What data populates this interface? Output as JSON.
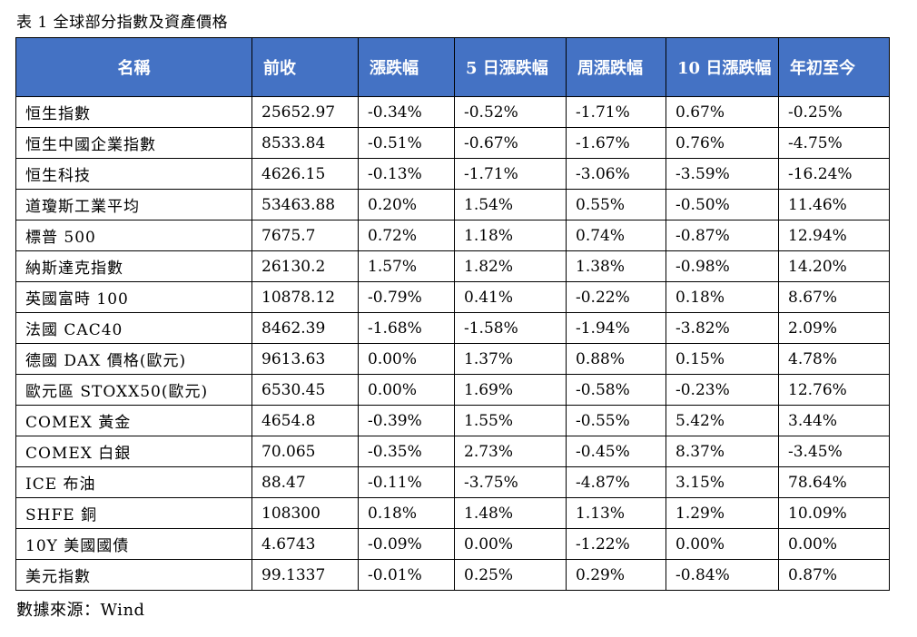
{
  "caption": "表 1 全球部分指數及資產價格",
  "table": {
    "headers": [
      "名稱",
      "前收",
      "漲跌幅",
      "5 日漲跌幅",
      "周漲跌幅",
      "10 日漲跌幅",
      "年初至今"
    ],
    "rows": [
      [
        "恒生指數",
        "25652.97",
        "-0.34%",
        "-0.52%",
        "-1.71%",
        "0.67%",
        "-0.25%"
      ],
      [
        "恒生中國企業指數",
        "8533.84",
        "-0.51%",
        "-0.67%",
        "-1.67%",
        "0.76%",
        "-4.75%"
      ],
      [
        "恒生科技",
        "4626.15",
        "-0.13%",
        "-1.71%",
        "-3.06%",
        "-3.59%",
        "-16.24%"
      ],
      [
        "道瓊斯工業平均",
        "53463.88",
        "0.20%",
        "1.54%",
        "0.55%",
        "-0.50%",
        "11.46%"
      ],
      [
        "標普 500",
        "7675.7",
        "0.72%",
        "1.18%",
        "0.74%",
        "-0.87%",
        "12.94%"
      ],
      [
        "納斯達克指數",
        "26130.2",
        "1.57%",
        "1.82%",
        "1.38%",
        "-0.98%",
        "14.20%"
      ],
      [
        "英國富時 100",
        "10878.12",
        "-0.79%",
        "0.41%",
        "-0.22%",
        "0.18%",
        "8.67%"
      ],
      [
        "法國 CAC40",
        "8462.39",
        "-1.68%",
        "-1.58%",
        "-1.94%",
        "-3.82%",
        "2.09%"
      ],
      [
        "德國 DAX 價格(歐元)",
        "9613.63",
        "0.00%",
        "1.37%",
        "0.88%",
        "0.15%",
        "4.78%"
      ],
      [
        "歐元區 STOXX50(歐元)",
        "6530.45",
        "0.00%",
        "1.69%",
        "-0.58%",
        "-0.23%",
        "12.76%"
      ],
      [
        "COMEX 黃金",
        "4654.8",
        "-0.39%",
        "1.55%",
        "-0.55%",
        "5.42%",
        "3.44%"
      ],
      [
        "COMEX 白銀",
        "70.065",
        "-0.35%",
        "2.73%",
        "-0.45%",
        "8.37%",
        "-3.45%"
      ],
      [
        "ICE 布油",
        "88.47",
        "-0.11%",
        "-3.75%",
        "-4.87%",
        "3.15%",
        "78.64%"
      ],
      [
        "SHFE 銅",
        "108300",
        "0.18%",
        "1.48%",
        "1.13%",
        "1.29%",
        "10.09%"
      ],
      [
        "10Y 美國國債",
        "4.6743",
        "-0.09%",
        "0.00%",
        "-1.22%",
        "0.00%",
        "0.00%"
      ],
      [
        "美元指數",
        "99.1337",
        "-0.01%",
        "0.25%",
        "0.29%",
        "-0.84%",
        "0.87%"
      ]
    ]
  },
  "source": "數據來源：Wind",
  "colors": {
    "header_bg": "#4472c4",
    "header_text": "#ffffff",
    "border": "#000000"
  }
}
